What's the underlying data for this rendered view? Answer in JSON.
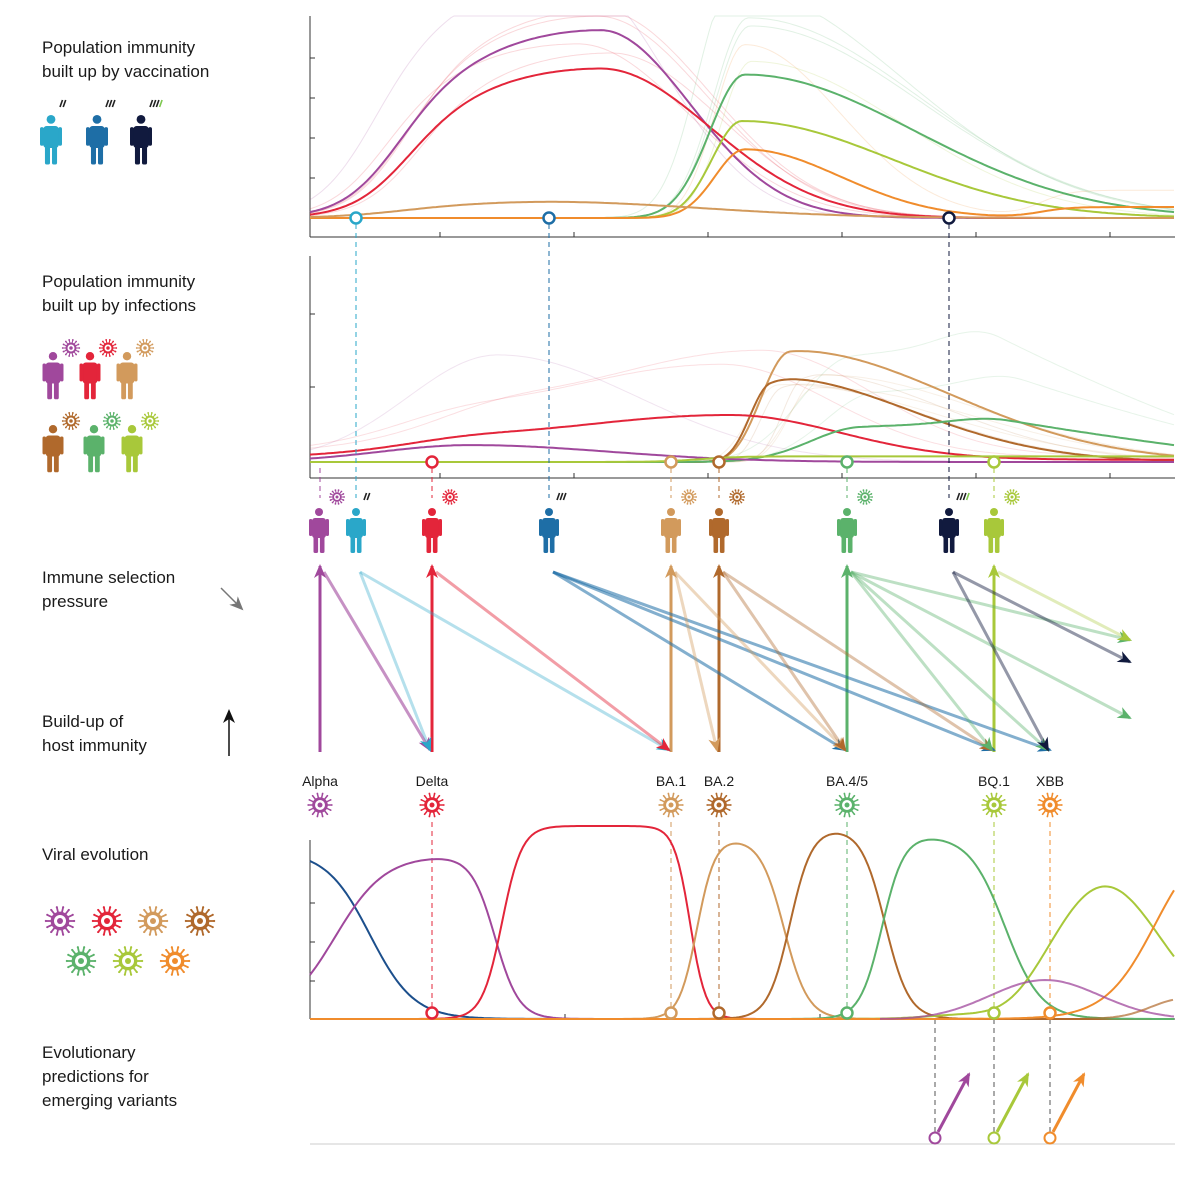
{
  "labels": {
    "vaccination": "Population immunity\nbuilt up by vaccination",
    "infections": "Population immunity\nbuilt up by infections",
    "selection": "Immune selection\npressure",
    "buildup": "Build-up of\nhost immunity",
    "viral": "Viral evolution",
    "predictions": "Evolutionary\npredictions for\nemerging variants"
  },
  "colors": {
    "alpha": "#a0489c",
    "delta": "#e3253a",
    "ba1": "#d29a5c",
    "ba2": "#b0692c",
    "ba45": "#5bb26b",
    "bq1": "#a8c83a",
    "xbb": "#f08c2c",
    "dose2": "#2aa7c9",
    "dose3": "#1e6ea6",
    "dose4": "#111a3e",
    "early": "#1c4f8c"
  },
  "variants": [
    {
      "key": "alpha",
      "label": "Alpha"
    },
    {
      "key": "delta",
      "label": "Delta"
    },
    {
      "key": "ba1",
      "label": "BA.1"
    },
    {
      "key": "ba2",
      "label": "BA.2"
    },
    {
      "key": "ba45",
      "label": "BA.4/5"
    },
    {
      "key": "bq1",
      "label": "BQ.1"
    },
    {
      "key": "xbb",
      "label": "XBB"
    }
  ],
  "vaccination_curves": [
    {
      "color": "dose2",
      "peak_rel": 0.93
    },
    {
      "color": "delta",
      "peak_rel": 0.74
    },
    {
      "color": "ba45",
      "peak_rel": 0.71
    },
    {
      "color": "bq1",
      "peak_rel": 0.48
    },
    {
      "color": "xbb",
      "peak_rel": 0.34
    },
    {
      "color": "ba1",
      "peak_rel": 0.08
    }
  ],
  "infection_curves": [
    {
      "color": "ba1",
      "peak_rel": 0.59
    },
    {
      "color": "ba2",
      "peak_rel": 0.44
    },
    {
      "color": "delta",
      "peak_rel": 0.25
    },
    {
      "color": "ba45",
      "peak_rel": 0.23
    },
    {
      "color": "alpha",
      "peak_rel": 0.09
    }
  ],
  "frequency_curves": [
    {
      "color": "early",
      "peak_rel": 0.81
    },
    {
      "color": "alpha",
      "peak_rel": 0.82
    },
    {
      "color": "delta",
      "peak_rel": 0.99
    },
    {
      "color": "ba1",
      "peak_rel": 0.9
    },
    {
      "color": "ba2",
      "peak_rel": 0.95
    },
    {
      "color": "ba45",
      "peak_rel": 0.92
    },
    {
      "color": "bq1",
      "peak_rel": 0.68
    },
    {
      "color": "xbb",
      "peak_rel": 0.66
    }
  ]
}
